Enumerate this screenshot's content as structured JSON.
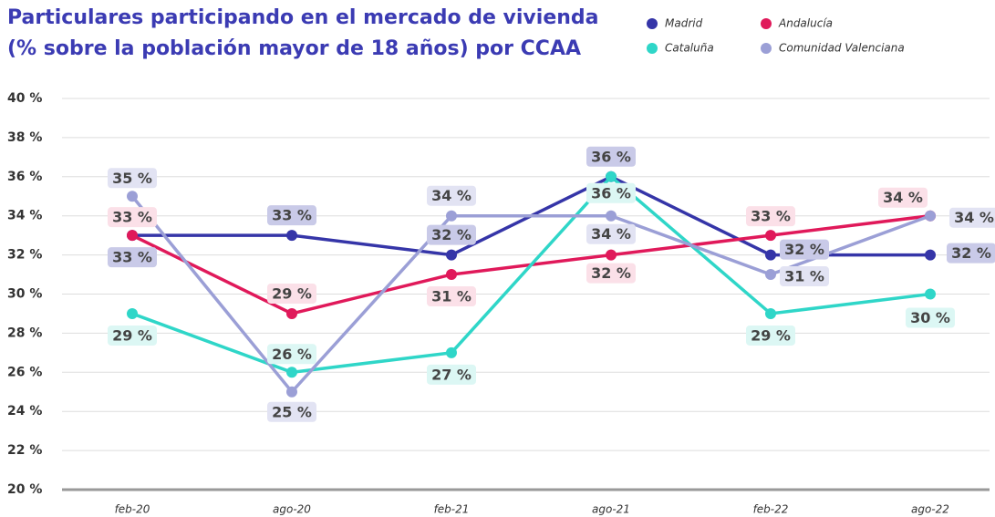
{
  "chart_data": {
    "type": "line",
    "title": [
      "Particulares participando en el mercado de vivienda",
      "(% sobre la población mayor de 18 años) por CCAA"
    ],
    "categories": [
      "feb-20",
      "ago-20",
      "feb-21",
      "ago-21",
      "feb-22",
      "ago-22"
    ],
    "series": [
      {
        "name": "Madrid",
        "color": "#3535a8",
        "values": [
          33,
          33,
          32,
          36,
          32,
          32
        ],
        "value_labels": [
          "33 %",
          "33 %",
          "32 %",
          "36 %",
          "32 %",
          "32 %"
        ]
      },
      {
        "name": "Andalucía",
        "color": "#e0195a",
        "values": [
          33,
          29,
          31,
          32,
          33,
          34
        ],
        "value_labels": [
          "33 %",
          "29 %",
          "31 %",
          "32 %",
          "33 %",
          "34 %"
        ]
      },
      {
        "name": "Cataluña",
        "color": "#2fd6c8",
        "values": [
          29,
          26,
          27,
          36,
          29,
          30
        ],
        "value_labels": [
          "29 %",
          "26 %",
          "27 %",
          "36 %",
          "29 %",
          "30 %"
        ]
      },
      {
        "name": "Comunidad Valenciana",
        "color": "#9b9fd6",
        "values": [
          35,
          25,
          34,
          34,
          31,
          34
        ],
        "value_labels": [
          "35 %",
          "25 %",
          "34 %",
          "34 %",
          "31 %",
          "34 %"
        ]
      }
    ],
    "ylim": [
      20,
      40
    ],
    "yticks": [
      {
        "value": 20,
        "label": "20 %"
      },
      {
        "value": 22,
        "label": "22 %"
      },
      {
        "value": 24,
        "label": "24 %"
      },
      {
        "value": 26,
        "label": "26 %"
      },
      {
        "value": 28,
        "label": "28 %"
      },
      {
        "value": 30,
        "label": "30 %"
      },
      {
        "value": 32,
        "label": "32 %"
      },
      {
        "value": 34,
        "label": "34 %"
      },
      {
        "value": 36,
        "label": "36 %"
      },
      {
        "value": 38,
        "label": "38 %"
      },
      {
        "value": 40,
        "label": "40 %"
      }
    ],
    "grid": true
  }
}
